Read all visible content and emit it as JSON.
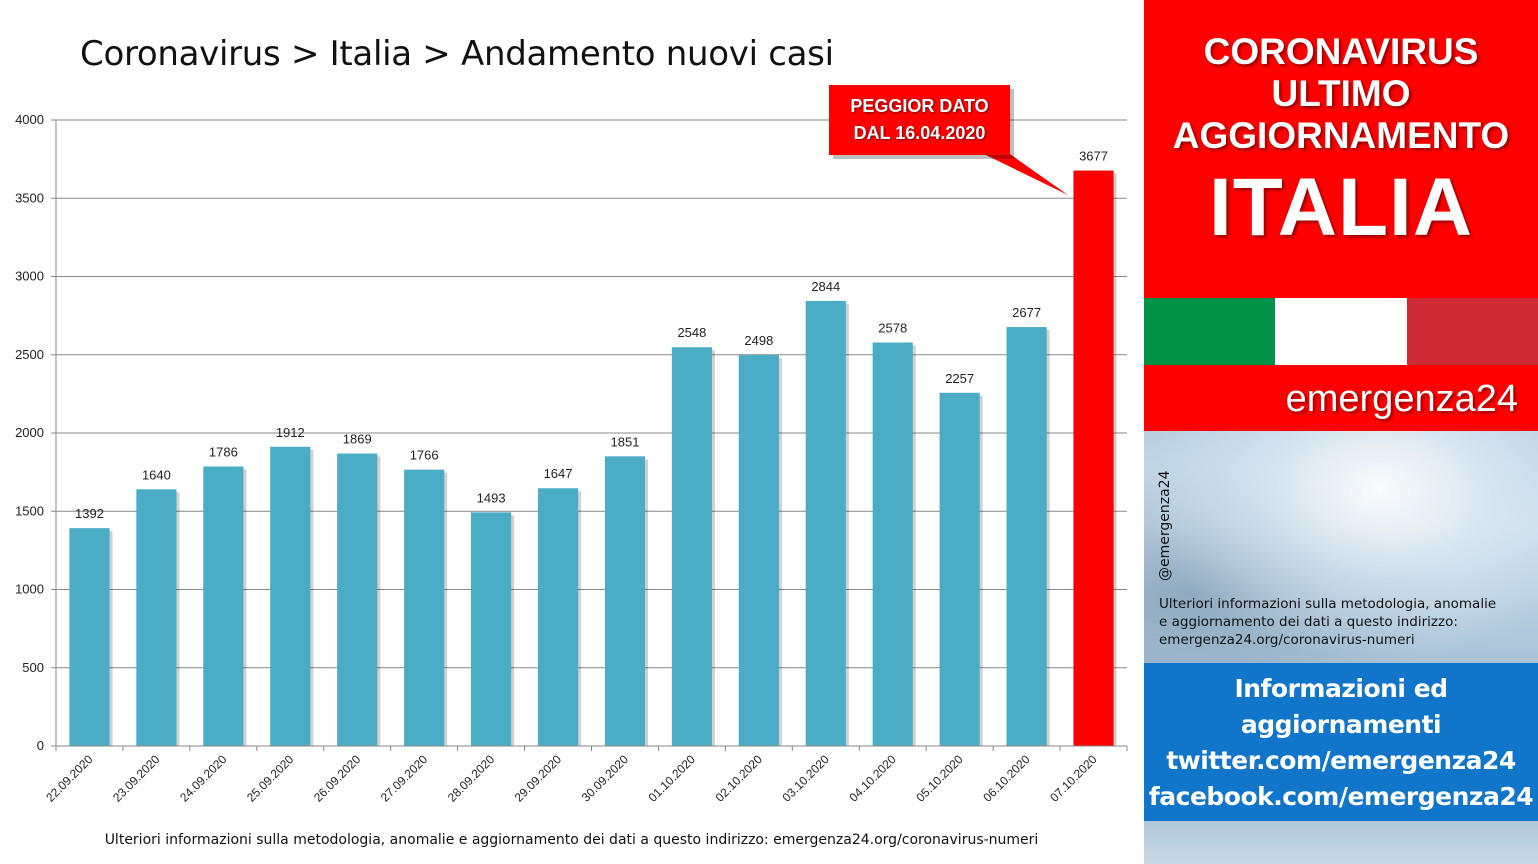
{
  "chart_title": "Coronavirus > Italia > Andamento nuovi casi",
  "callout": {
    "line1": "PEGGIOR DATO",
    "line2": "DAL 16.04.2020"
  },
  "footnote": "Ulteriori informazioni sulla metodologia, anomalie e aggiornamento dei dati a questo indirizzo: emergenza24.org/coronavirus-numeri",
  "colors": {
    "bar": "#4bacc6",
    "highlight_bar": "#ff0000",
    "callout_bg": "#ff0000",
    "header_bg": "#ff0000",
    "flag_green": "#009246",
    "flag_white": "#ffffff",
    "flag_red": "#ce2b37",
    "info_bg": "#1175c9"
  },
  "chart_data": {
    "type": "bar",
    "categories": [
      "22.09.2020",
      "23.09.2020",
      "24.09.2020",
      "25.09.2020",
      "26.09.2020",
      "27.09.2020",
      "28.09.2020",
      "29.09.2020",
      "30.09.2020",
      "01.10.2020",
      "02.10.2020",
      "03.10.2020",
      "04.10.2020",
      "05.10.2020",
      "06.10.2020",
      "07.10.2020"
    ],
    "values": [
      1392,
      1640,
      1786,
      1912,
      1869,
      1766,
      1493,
      1647,
      1851,
      2548,
      2498,
      2844,
      2578,
      2257,
      2677,
      3677
    ],
    "yticks": [
      0,
      500,
      1000,
      1500,
      2000,
      2500,
      3000,
      3500,
      4000
    ],
    "ylim": [
      0,
      4000
    ],
    "grid": true,
    "legend": "none",
    "highlight_index": 15,
    "title": "Coronavirus > Italia > Andamento nuovi casi",
    "xlabel": "",
    "ylabel": ""
  },
  "side_panel": {
    "header": {
      "line1": "CORONAVIRUS",
      "line2": "ULTIMO",
      "line3": "AGGIORNAMENTO",
      "line4": "ITALIA"
    },
    "brand": "emergenza24",
    "handle": "@emergenza24",
    "photo_note": {
      "line1": "Ulteriori informazioni sulla metodologia, anomalie",
      "line2": "e aggiornamento dei dati a questo indirizzo:",
      "line3": "emergenza24.org/coronavirus-numeri"
    },
    "info": {
      "line1": "Informazioni ed",
      "line2": "aggiornamenti",
      "line3": "twitter.com/emergenza24",
      "line4": "facebook.com/emergenza24"
    }
  }
}
